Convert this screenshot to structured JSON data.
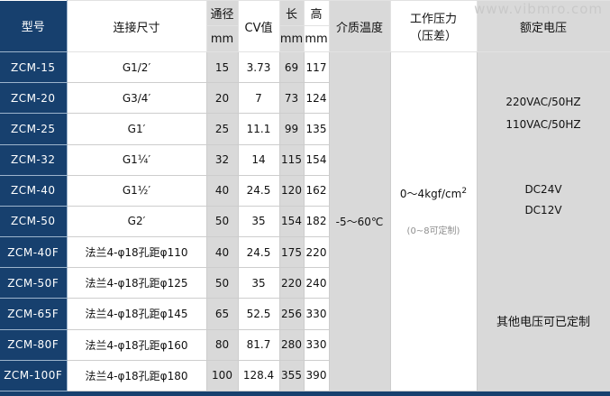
{
  "watermark": "www.vibmro.com",
  "colors": {
    "model_column_navy": "#17406e",
    "stripe_gray": "#d9d9d9",
    "cell_border": "#cdcdcd",
    "note_gray": "#8f8f8f",
    "watermark_gray": "#c9c9c9"
  },
  "table": {
    "headers": {
      "model": "型号",
      "connection": "连接尺寸",
      "diameter": "通径",
      "unit": "mm",
      "cv": "CV值",
      "length": "长",
      "height": "高",
      "medium_temp": "介质温度",
      "pressure_line1": "工作压力",
      "pressure_line2": "（压差）",
      "voltage": "额定电压"
    },
    "rows": [
      {
        "model": "ZCM-15",
        "connection": "G1/2′",
        "diameter": "15",
        "cv": "3.73",
        "length": "69",
        "height": "117"
      },
      {
        "model": "ZCM-20",
        "connection": "G3/4′",
        "diameter": "20",
        "cv": "7",
        "length": "73",
        "height": "124"
      },
      {
        "model": "ZCM-25",
        "connection": "G1′",
        "diameter": "25",
        "cv": "11.1",
        "length": "99",
        "height": "135"
      },
      {
        "model": "ZCM-32",
        "connection": "G1¼′",
        "diameter": "32",
        "cv": "14",
        "length": "115",
        "height": "154"
      },
      {
        "model": "ZCM-40",
        "connection": "G1½′",
        "diameter": "40",
        "cv": "24.5",
        "length": "120",
        "height": "162"
      },
      {
        "model": "ZCM-50",
        "connection": "G2′",
        "diameter": "50",
        "cv": "35",
        "length": "154",
        "height": "182"
      },
      {
        "model": "ZCM-40F",
        "connection": "法兰4-φ18孔距φ110",
        "diameter": "40",
        "cv": "24.5",
        "length": "175",
        "height": "220"
      },
      {
        "model": "ZCM-50F",
        "connection": "法兰4-φ18孔距φ125",
        "diameter": "50",
        "cv": "35",
        "length": "220",
        "height": "240"
      },
      {
        "model": "ZCM-65F",
        "connection": "法兰4-φ18孔距φ145",
        "diameter": "65",
        "cv": "52.5",
        "length": "256",
        "height": "330"
      },
      {
        "model": "ZCM-80F",
        "connection": "法兰4-φ18孔距φ160",
        "diameter": "80",
        "cv": "81.7",
        "length": "280",
        "height": "330"
      },
      {
        "model": "ZCM-100F",
        "connection": "法兰4-φ18孔距φ180",
        "diameter": "100",
        "cv": "128.4",
        "length": "355",
        "height": "390"
      }
    ],
    "merged": {
      "medium_temp": "-5～60℃",
      "pressure_main": "0～4kgf/cm",
      "pressure_sup": "2",
      "pressure_note": "(0~8可定制)",
      "voltage_lines": [
        "220VAC/50HZ",
        "110VAC/50HZ",
        "DC24V",
        "DC12V",
        "其他电压可已定制"
      ]
    }
  }
}
